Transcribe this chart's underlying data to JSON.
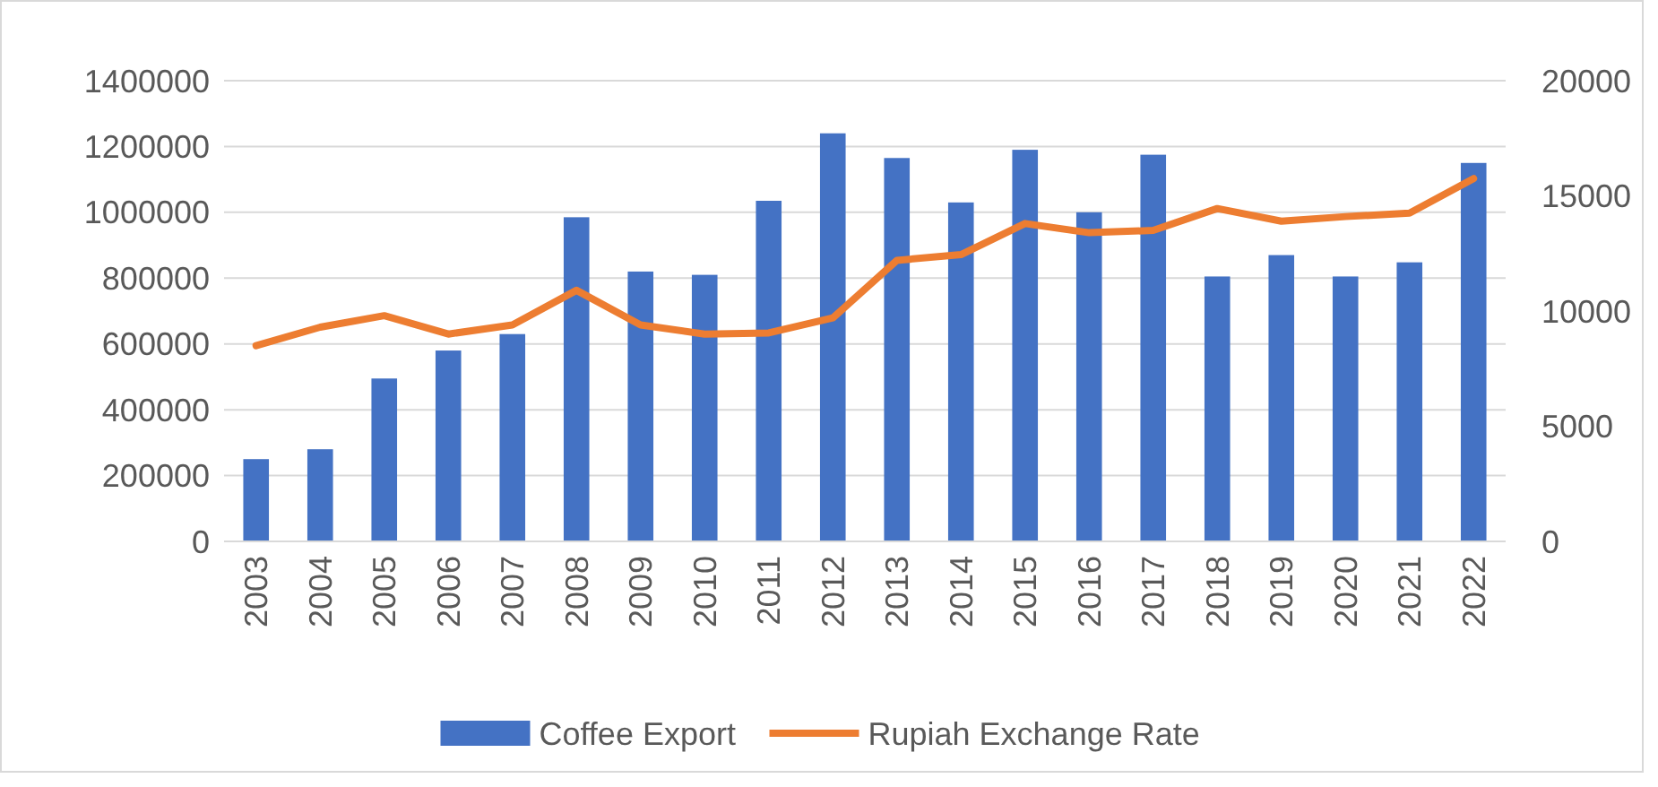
{
  "chart_data": {
    "type": "bar",
    "categories": [
      "2003",
      "2004",
      "2005",
      "2006",
      "2007",
      "2008",
      "2009",
      "2010",
      "2011",
      "2012",
      "2013",
      "2014",
      "2015",
      "2016",
      "2017",
      "2018",
      "2019",
      "2020",
      "2021",
      "2022"
    ],
    "series": [
      {
        "name": "Coffee Export",
        "color": "#4472c4",
        "values": [
          250000,
          280000,
          495000,
          580000,
          630000,
          985000,
          820000,
          810000,
          1035000,
          1240000,
          1165000,
          1030000,
          1190000,
          1000000,
          1175000,
          805000,
          870000,
          805000,
          848000,
          1150000
        ]
      },
      {
        "name": "Rupiah Exchange Rate",
        "type": "line",
        "axis": "y2",
        "color": "#ed7d31",
        "values": [
          8500,
          9300,
          9800,
          9000,
          9400,
          10900,
          9400,
          9000,
          9050,
          9700,
          12200,
          12450,
          13800,
          13400,
          13500,
          14450,
          13900,
          14100,
          14250,
          15750
        ]
      }
    ],
    "ylim": [
      0,
      1400000
    ],
    "yticks": [
      0,
      200000,
      400000,
      600000,
      800000,
      1000000,
      1200000,
      1400000
    ],
    "y2lim": [
      0,
      20000
    ],
    "y2ticks": [
      0,
      5000,
      10000,
      15000,
      20000
    ],
    "grid": "y",
    "legend": "bottom",
    "marker": "none",
    "line_style": "solid"
  }
}
